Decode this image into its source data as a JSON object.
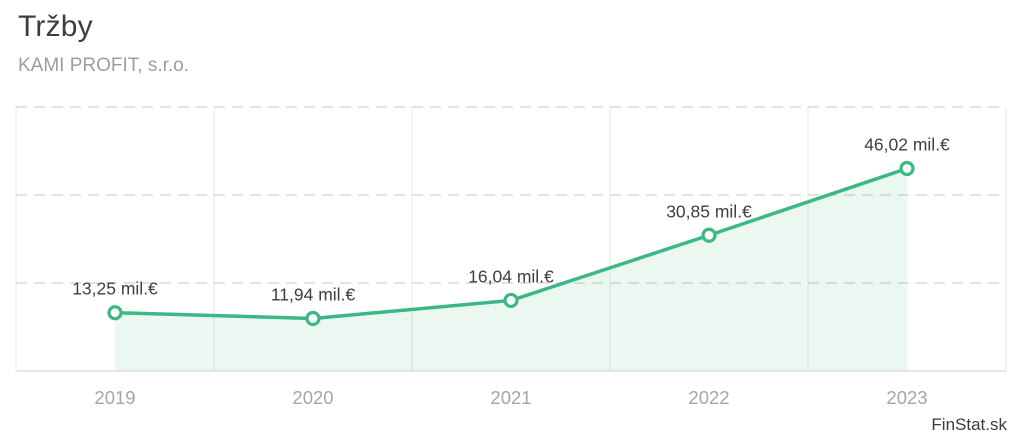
{
  "header": {
    "title": "Tržby",
    "subtitle": "KAMI PROFIT, s.r.o."
  },
  "footer": {
    "watermark": "FinStat.sk"
  },
  "colors": {
    "line": "#3bb884",
    "area": "#3bb884",
    "area_opacity": 0.1,
    "marker_fill": "#ffffff",
    "grid_dashed": "#d9d9d9",
    "grid_solid": "#e7e7e7",
    "baseline": "#e0e0e0",
    "value_label": "#3f3f3f",
    "axis_label": "#a6a6a6"
  },
  "chart_data": {
    "type": "area",
    "title": "Tržby",
    "subtitle": "KAMI PROFIT, s.r.o.",
    "categories": [
      "2019",
      "2020",
      "2021",
      "2022",
      "2023"
    ],
    "values": [
      13.25,
      11.94,
      16.04,
      30.85,
      46.02
    ],
    "point_labels": [
      "13,25 mil.€",
      "11,94 mil.€",
      "16,04 mil.€",
      "30,85 mil.€",
      "46,02 mil.€"
    ],
    "unit": "mil.€",
    "xlabel": "",
    "ylabel": "",
    "ylim": [
      0,
      60
    ],
    "yticks": [
      20,
      40,
      60
    ],
    "grid": {
      "horizontal": "dashed",
      "vertical": "solid"
    },
    "legend": "none"
  }
}
